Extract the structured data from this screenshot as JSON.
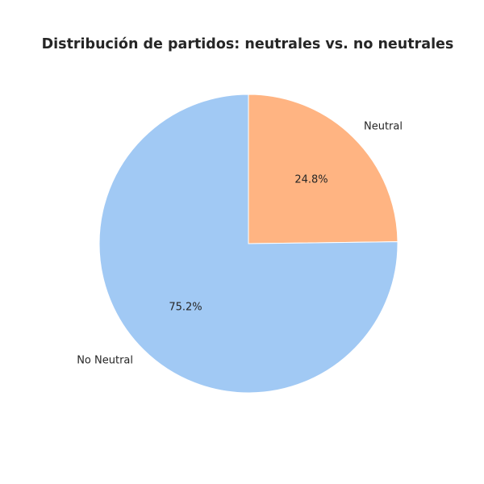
{
  "chart_data": {
    "type": "pie",
    "title": "Distribución de partidos: neutrales vs. no neutrales",
    "labels": [
      "Neutral",
      "No Neutral"
    ],
    "values": [
      24.8,
      75.2
    ],
    "percent_labels": [
      "24.8%",
      "75.2%"
    ],
    "colors": [
      "#ffb482",
      "#a1c9f4"
    ],
    "start_angle_deg": 90,
    "direction": "clockwise"
  }
}
